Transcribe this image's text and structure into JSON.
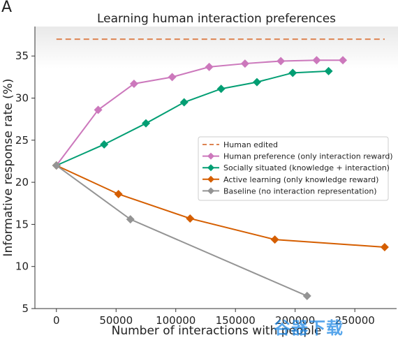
{
  "panel_label": "A",
  "watermark": "谷器下载",
  "chart_data": {
    "type": "line",
    "title": "Learning human interaction preferences",
    "xlabel": "Number of interactions with people",
    "ylabel": "Informative response rate (%)",
    "xlim": [
      -18000,
      285000
    ],
    "ylim": [
      5,
      38.5
    ],
    "xticks": [
      0,
      50000,
      100000,
      150000,
      200000,
      250000
    ],
    "xtick_labels": [
      "0",
      "50000",
      "100000",
      "150000",
      "200000",
      "250000"
    ],
    "yticks": [
      5,
      10,
      15,
      20,
      25,
      30,
      35
    ],
    "ytick_labels": [
      "5",
      "10",
      "15",
      "20",
      "25",
      "30",
      "35"
    ],
    "grid": false,
    "legend_position": "center-right",
    "series": [
      {
        "name": "Human edited",
        "color": "#dd8452",
        "style": "dashed",
        "marker": "none",
        "x": [
          0,
          275000
        ],
        "y": [
          37,
          37
        ]
      },
      {
        "name": "Human preference (only interaction reward)",
        "color": "#cc78bc",
        "style": "solid",
        "marker": "diamond",
        "x": [
          0,
          35000,
          65000,
          97000,
          128000,
          158000,
          188000,
          218000,
          240000
        ],
        "y": [
          22,
          28.6,
          31.7,
          32.5,
          33.7,
          34.1,
          34.4,
          34.5,
          34.5
        ]
      },
      {
        "name": "Socially situated (knowledge + interaction)",
        "color": "#029e73",
        "style": "solid",
        "marker": "diamond",
        "x": [
          0,
          40000,
          75000,
          107000,
          138000,
          168000,
          198000,
          228000
        ],
        "y": [
          22,
          24.5,
          27,
          29.5,
          31.1,
          31.9,
          33.0,
          33.2
        ]
      },
      {
        "name": "Active learning (only knowledge reward)",
        "color": "#d55e00",
        "style": "solid",
        "marker": "diamond",
        "x": [
          0,
          52000,
          112000,
          183000,
          275000
        ],
        "y": [
          22,
          18.6,
          15.7,
          13.2,
          12.3
        ]
      },
      {
        "name": "Baseline (no interaction representation)",
        "color": "#949494",
        "style": "solid",
        "marker": "diamond",
        "x": [
          0,
          62000,
          210000
        ],
        "y": [
          22,
          15.6,
          6.5
        ]
      }
    ]
  }
}
